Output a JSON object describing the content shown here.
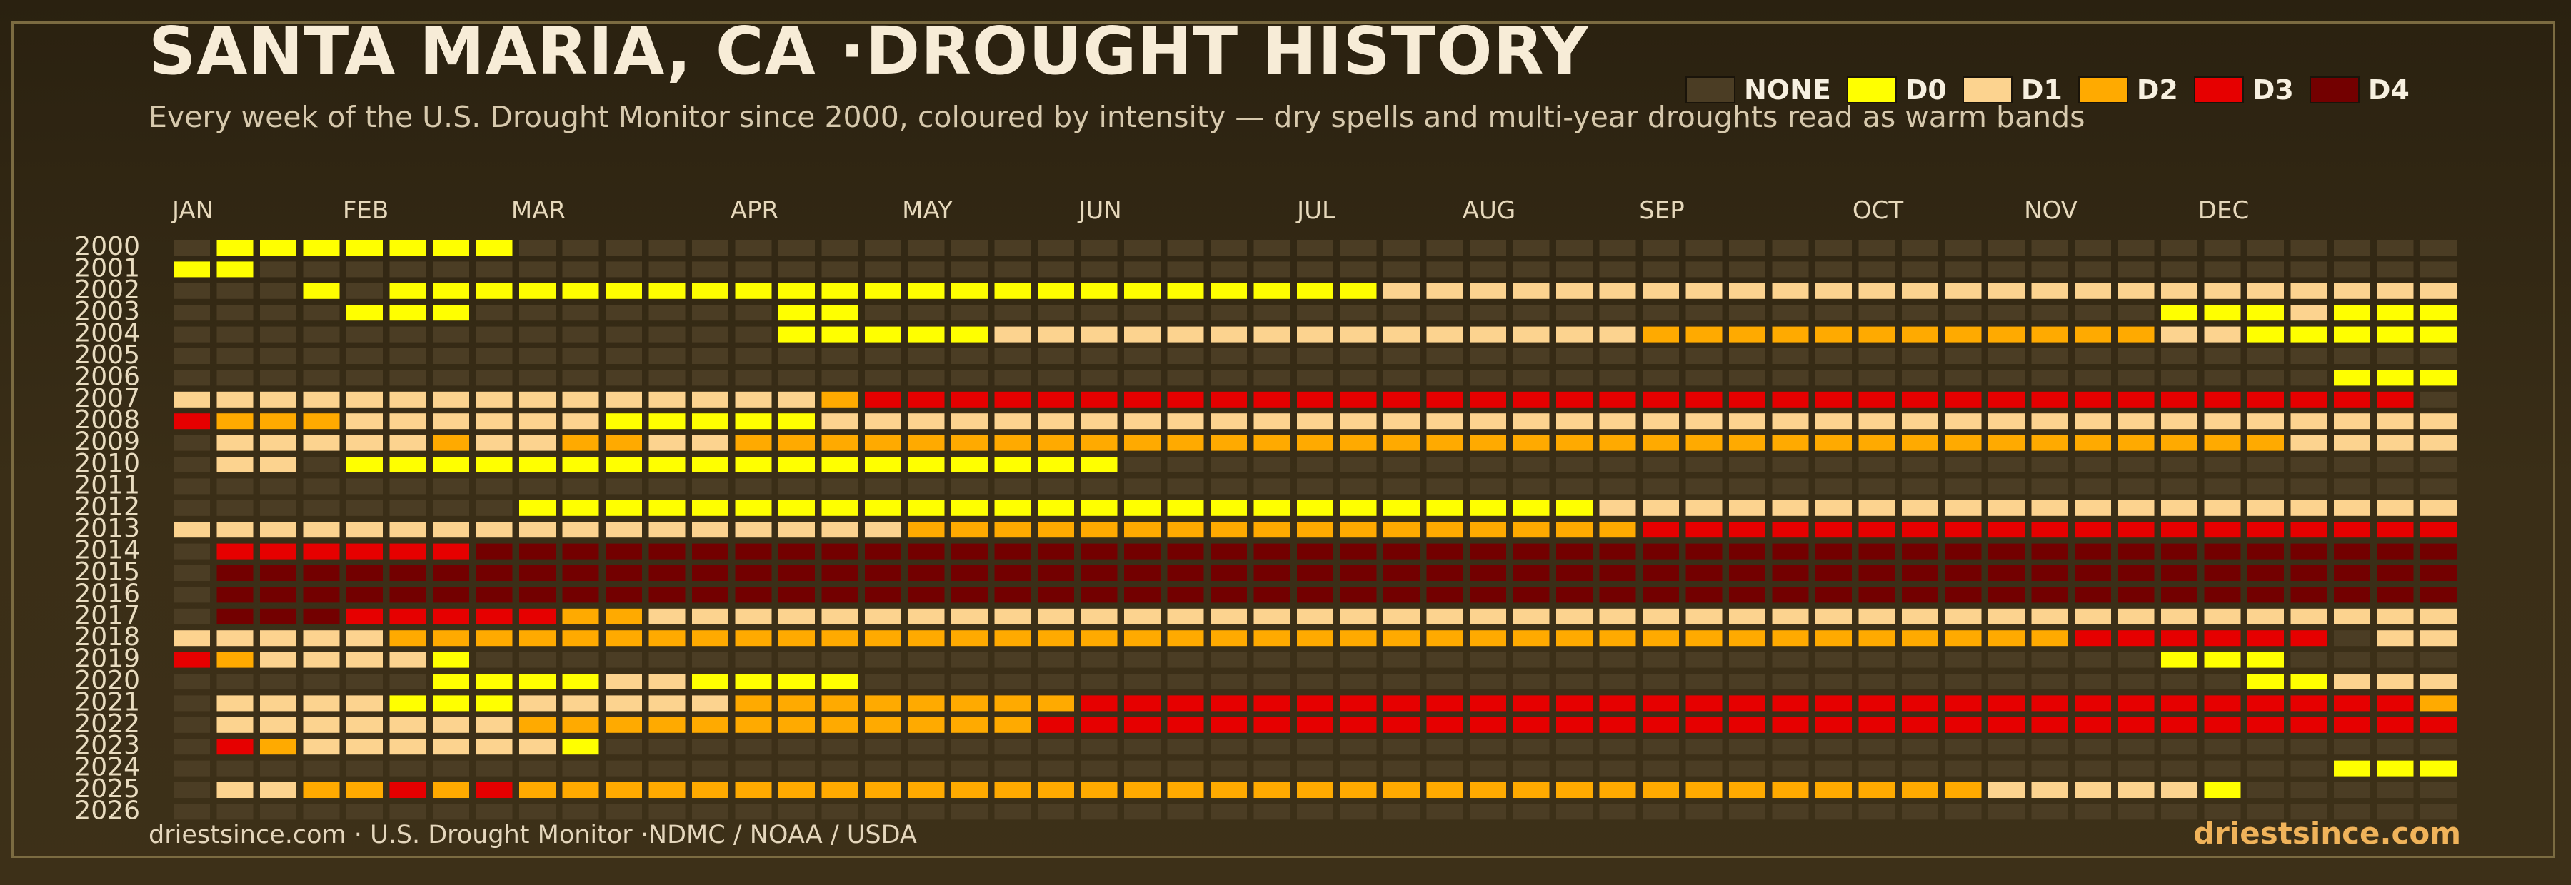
{
  "header": {
    "title": "SANTA MARIA, CA ·DROUGHT HISTORY",
    "subtitle": "Every week of the U.S. Drought Monitor since 2000, coloured by intensity — dry spells and multi-year droughts read as warm bands"
  },
  "legend": [
    {
      "label": "NONE",
      "color": "#4b3d24"
    },
    {
      "label": "D0",
      "color": "#ffff00"
    },
    {
      "label": "D1",
      "color": "#fcd38f"
    },
    {
      "label": "D2",
      "color": "#ffaa00"
    },
    {
      "label": "D3",
      "color": "#e60000"
    },
    {
      "label": "D4",
      "color": "#730000"
    }
  ],
  "footer": {
    "source": "driestsince.com  · U.S. Drought Monitor ·NDMC / NOAA / USDA",
    "brand": "driestsince.com"
  },
  "chart_data": {
    "type": "heatmap",
    "title": "SANTA MARIA, CA ·DROUGHT HISTORY",
    "x_tick_labels": [
      {
        "label": "JAN",
        "week": 0
      },
      {
        "label": "FEB",
        "week": 4
      },
      {
        "label": "MAR",
        "week": 8
      },
      {
        "label": "APR",
        "week": 13
      },
      {
        "label": "MAY",
        "week": 17
      },
      {
        "label": "JUN",
        "week": 21
      },
      {
        "label": "JUL",
        "week": 26
      },
      {
        "label": "AUG",
        "week": 30
      },
      {
        "label": "SEP",
        "week": 34
      },
      {
        "label": "OCT",
        "week": 39
      },
      {
        "label": "NOV",
        "week": 43
      },
      {
        "label": "DEC",
        "week": 47
      }
    ],
    "weeks_per_year": 53,
    "value_scale": {
      "0": "NONE",
      "1": "D0",
      "2": "D1",
      "3": "D2",
      "4": "D3",
      "5": "D4"
    },
    "years": [
      "2000",
      "2001",
      "2002",
      "2003",
      "2004",
      "2005",
      "2006",
      "2007",
      "2008",
      "2009",
      "2010",
      "2011",
      "2012",
      "2013",
      "2014",
      "2015",
      "2016",
      "2017",
      "2018",
      "2019",
      "2020",
      "2021",
      "2022",
      "2023",
      "2024",
      "2025",
      "2026"
    ],
    "rows": [
      "01111111000000000000000000000000000000000000000000000",
      "11000000000000000000000000000000000000000000000000000",
      "00010111111111111111111111112222222222222222222222222",
      "00001110000000110000000000000000000000000000001112111",
      "00000000000000111112222222222222223333333333332211111",
      "00000000000000000000000000000000000000000000000000000",
      "00000000000000000000000000000000000000000000000000111",
      "22222222222222234444444444444444444444444444444444440",
      "43332222221111122222222222222222222222222222222222222",
      "02222232233223333333333333333333333333333333333332222",
      "02201111111111111111110000000000000000000000000000000",
      "00000000000000000000000000000000000000000000000000000",
      "00000000111111111111111111111111122222222222222222222",
      "22222222222222222333333333333333334444444444444444444",
      "04444445555555555555555555555555555555555555555555555",
      "05555555555555555555555555555555555555555555555555555",
      "05555555555555555555555555555555555555555555555555555",
      "05554444433222222222222222222222222222222222222222222",
      "22222333333333333333333333333333333333333333444444022",
      "43222210000000000000000000000000000000000000001110000",
      "00000011112211110000000000000000000000000000000011222",
      "02222111222223333333344444444444444444444444444444443",
      "02222222333333333333444444444444444444444444444444444",
      "04322222210000000000000000000000000000000000000000000",
      "00000000000000000000000000000000000000000000000000111",
      "02233434333333333333333333333333333333333322222100000",
      "00000000000000000000000000000000000000000000000000000"
    ]
  }
}
